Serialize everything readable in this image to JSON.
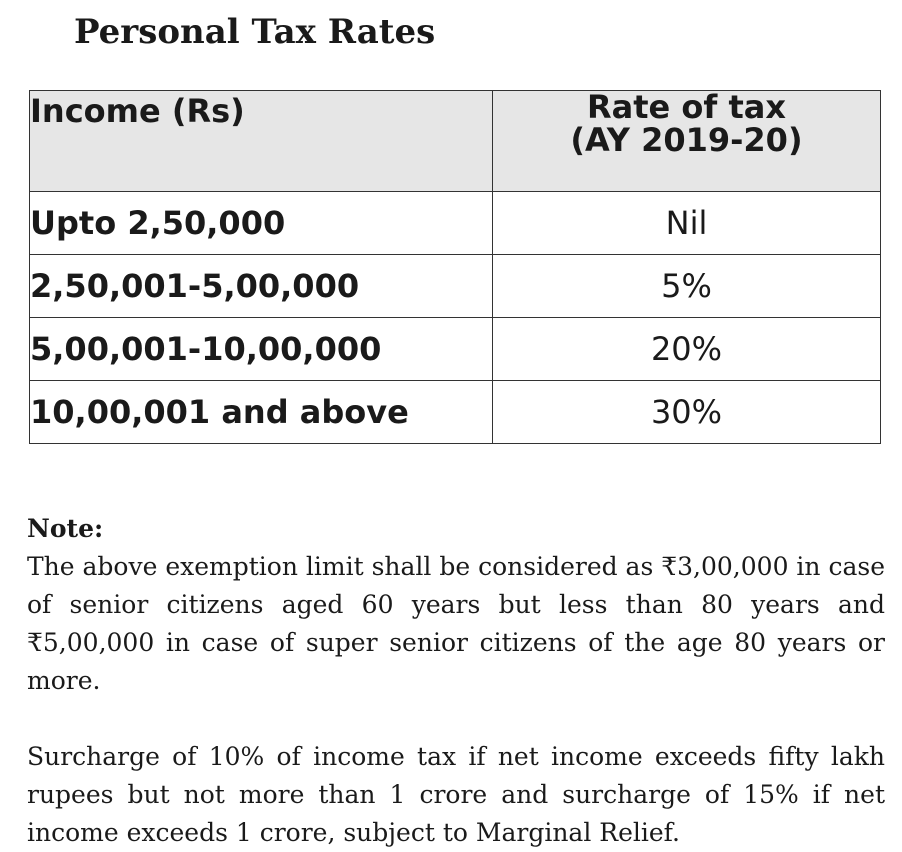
{
  "title": "Personal Tax Rates",
  "table": {
    "headers": {
      "income": "Income (Rs)",
      "rate_line1": "Rate of tax",
      "rate_line2": "(AY 2019-20)"
    },
    "rows": [
      {
        "income": "Upto 2,50,000",
        "rate": "Nil"
      },
      {
        "income": "2,50,001-5,00,000",
        "rate": "5%"
      },
      {
        "income": "5,00,001-10,00,000",
        "rate": "20%"
      },
      {
        "income": "10,00,001 and above",
        "rate": "30%"
      }
    ]
  },
  "note": {
    "heading": "Note:",
    "paragraph1": "The above exemption limit shall be considered as ₹3,00,000 in case of senior citizens aged 60 years but less than 80 years and ₹5,00,000 in case of super senior citizens of the age 80 years or more.",
    "paragraph2": "Surcharge of 10% of income tax if net income exceeds fifty lakh rupees but not more than 1 crore and surcharge of 15% if net income exceeds 1 crore, subject to Marginal Relief."
  }
}
